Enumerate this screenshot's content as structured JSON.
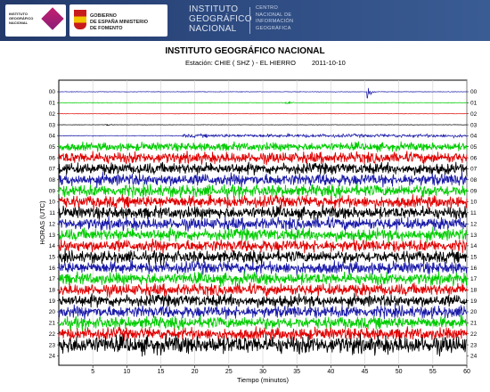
{
  "banner": {
    "ign_logo_text": "INSTITUTO\nGEOGRÁFICO\nNACIONAL",
    "gov_logo_text": "GOBIERNO\nDE ESPAÑA   MINISTERIO\nDE FOMENTO",
    "title": "INSTITUTO\nGEOGRÁFICO\nNACIONAL",
    "subtitle": "CENTRO\nNACIONAL DE\nINFORMACIÓN\nGEOGRÁFICA",
    "colors": {
      "banner": "#2d4a80",
      "ign_mark": "#c41e6e",
      "spain_red": "#c81b1b",
      "spain_yellow": "#f3c300"
    }
  },
  "chart_data": {
    "type": "line",
    "title": "INSTITUTO GEOGRÁFICO NACIONAL",
    "station": "Estación:  CHIE ( SHZ ) - EL HIERRO",
    "date": "2011-10-10",
    "xlabel": "Tiempo (minutos)",
    "ylabel": "HORAS (UTC)",
    "xlim": [
      0,
      60
    ],
    "x_ticks": [
      5,
      10,
      15,
      20,
      25,
      30,
      35,
      40,
      45,
      50,
      55,
      60
    ],
    "hours": [
      "00",
      "01",
      "02",
      "03",
      "04",
      "05",
      "06",
      "07",
      "08",
      "09",
      "10",
      "11",
      "12",
      "13",
      "14",
      "15",
      "16",
      "17",
      "18",
      "19",
      "20",
      "21",
      "22",
      "23",
      "24"
    ],
    "trace_color_cycle": [
      "#1a1aa8",
      "#00cc00",
      "#e00000",
      "#000000"
    ],
    "amplitude_by_hour": [
      0.08,
      0.09,
      0.05,
      0.06,
      0.5,
      1.1,
      1.5,
      1.5,
      1.6,
      1.6,
      1.6,
      1.6,
      1.6,
      1.6,
      1.6,
      1.6,
      1.6,
      1.6,
      1.6,
      1.6,
      1.6,
      1.6,
      1.6,
      2.4
    ],
    "events": [
      {
        "hour": "00",
        "minute": 45.5,
        "amplitude": 2.2
      },
      {
        "hour": "01",
        "minute": 33.5,
        "amplitude": 0.8
      },
      {
        "hour": "03",
        "minute": 7,
        "amplitude": 0.3
      },
      {
        "hour": "08",
        "minute": 59,
        "amplitude": 1.5
      }
    ],
    "grid": true
  }
}
